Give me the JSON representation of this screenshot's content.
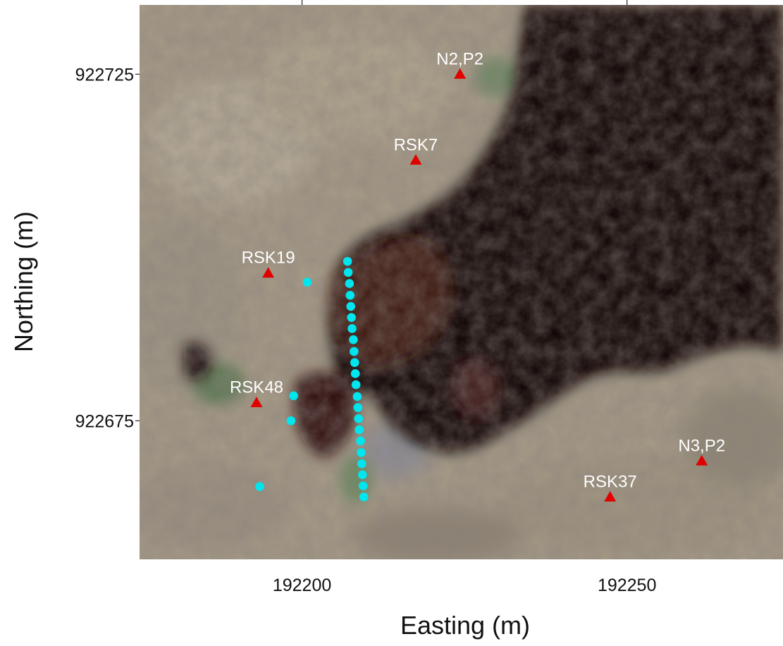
{
  "chart_data": {
    "type": "scatter",
    "title": "",
    "xlabel": "Easting (m)",
    "ylabel": "Northing (m)",
    "xlim": [
      192175,
      192274
    ],
    "ylim": [
      922655,
      922735
    ],
    "x_ticks": [
      {
        "value": 192200,
        "label": "192200"
      },
      {
        "value": 192250,
        "label": "192250"
      }
    ],
    "y_ticks": [
      {
        "value": 922725,
        "label": "922725"
      },
      {
        "value": 922675,
        "label": "922675"
      }
    ],
    "basemap": "aerial imagery",
    "series": [
      {
        "marker": "triangle",
        "color": "#e00000",
        "points": [
          {
            "label": "N2,P2",
            "x": 192224.3,
            "y": 922725.0
          },
          {
            "label": "RSK7",
            "x": 192217.5,
            "y": 922712.6
          },
          {
            "label": "RSK19",
            "x": 192194.8,
            "y": 922696.3
          },
          {
            "label": "RSK48",
            "x": 192193.0,
            "y": 922677.6
          },
          {
            "label": "RSK37",
            "x": 192247.4,
            "y": 922664.0
          },
          {
            "label": "N3,P2",
            "x": 192261.5,
            "y": 922669.2
          }
        ]
      },
      {
        "marker": "circle",
        "color": "#00e5ee",
        "points": [
          {
            "x": 192200.8,
            "y": 922695.0
          },
          {
            "x": 192198.7,
            "y": 922678.6
          },
          {
            "x": 192198.3,
            "y": 922675.0
          },
          {
            "x": 192193.5,
            "y": 922665.5
          },
          {
            "x": 192207.0,
            "y": 922698.0
          },
          {
            "x": 192207.1,
            "y": 922696.4
          },
          {
            "x": 192207.3,
            "y": 922694.8
          },
          {
            "x": 192207.4,
            "y": 922693.1
          },
          {
            "x": 192207.5,
            "y": 922691.5
          },
          {
            "x": 192207.6,
            "y": 922689.9
          },
          {
            "x": 192207.7,
            "y": 922688.3
          },
          {
            "x": 192207.9,
            "y": 922686.7
          },
          {
            "x": 192208.0,
            "y": 922685.0
          },
          {
            "x": 192208.1,
            "y": 922683.4
          },
          {
            "x": 192208.2,
            "y": 922681.8
          },
          {
            "x": 192208.3,
            "y": 922680.2
          },
          {
            "x": 192208.5,
            "y": 922678.5
          },
          {
            "x": 192208.6,
            "y": 922676.9
          },
          {
            "x": 192208.7,
            "y": 922675.3
          },
          {
            "x": 192208.8,
            "y": 922673.7
          },
          {
            "x": 192209.0,
            "y": 922672.1
          },
          {
            "x": 192209.1,
            "y": 922670.4
          },
          {
            "x": 192209.2,
            "y": 922668.8
          },
          {
            "x": 192209.3,
            "y": 922667.2
          },
          {
            "x": 192209.4,
            "y": 922665.6
          },
          {
            "x": 192209.5,
            "y": 922664.0
          }
        ]
      }
    ]
  }
}
